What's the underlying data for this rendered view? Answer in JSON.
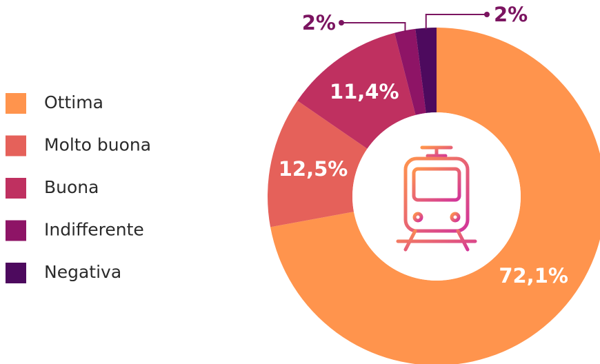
{
  "chart_data": {
    "type": "donut",
    "categories": [
      "Ottima",
      "Molto buona",
      "Buona",
      "Indifferente",
      "Negativa"
    ],
    "values": [
      72.1,
      12.5,
      11.4,
      2,
      2
    ],
    "value_labels": [
      "72,1%",
      "12,5%",
      "11,4%",
      "2%",
      "2%"
    ],
    "colors": [
      "#ff944d",
      "#e5615a",
      "#bf3060",
      "#8e1466",
      "#4d0a5e"
    ],
    "legend": "left"
  }
}
